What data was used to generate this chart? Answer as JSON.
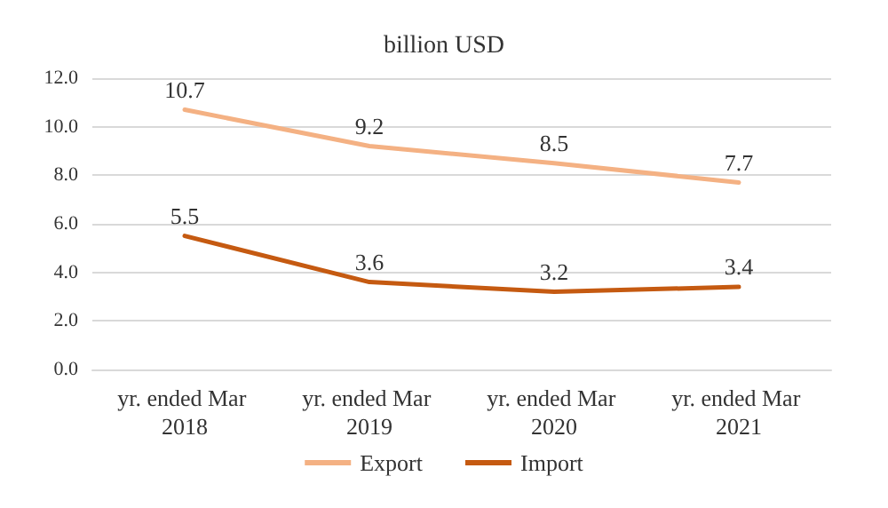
{
  "chart_data": {
    "type": "line",
    "title": "billion USD",
    "categories": [
      "yr. ended Mar 2018",
      "yr. ended Mar 2019",
      "yr. ended Mar 2020",
      "yr. ended Mar 2021"
    ],
    "series": [
      {
        "name": "Export",
        "color": "#f4b183",
        "values": [
          10.7,
          9.2,
          8.5,
          7.7
        ]
      },
      {
        "name": "Import",
        "color": "#c55a11",
        "values": [
          5.5,
          3.6,
          3.2,
          3.4
        ]
      }
    ],
    "ylim": [
      0,
      12
    ],
    "yticks": [
      {
        "value": 0,
        "label": "0.0"
      },
      {
        "value": 2,
        "label": "2.0"
      },
      {
        "value": 4,
        "label": "4.0"
      },
      {
        "value": 6,
        "label": "6.0"
      },
      {
        "value": 8,
        "label": "8.0"
      },
      {
        "value": 10,
        "label": "10.0"
      },
      {
        "value": 12,
        "label": "12.0"
      }
    ],
    "grid": "y",
    "legend": "bottom",
    "data_labels": true,
    "marker": "none",
    "line_style": "solid"
  }
}
